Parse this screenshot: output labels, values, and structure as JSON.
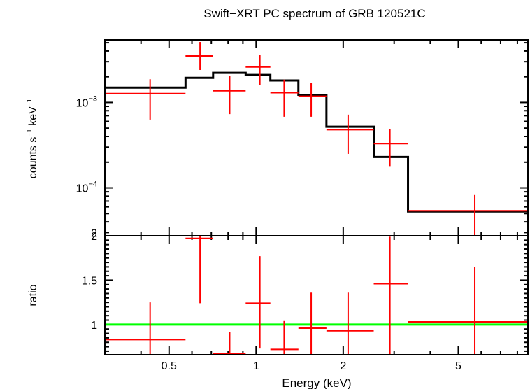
{
  "chart_data": [
    {
      "type": "scatter",
      "title": "Swift−XRT PC spectrum of GRB 120521C",
      "xlabel": "",
      "ylabel_main": "counts s",
      "ylabel_exp1": "−1",
      "ylabel_mid": " keV",
      "ylabel_exp2": "−1",
      "xscale": "log",
      "yscale": "log",
      "xlim": [
        0.3,
        8.7
      ],
      "ylim": [
        2.75e-05,
        0.0054
      ],
      "ytick_labels": [
        {
          "value": 0.001,
          "base": "10",
          "exp": "−3"
        },
        {
          "value": 0.0001,
          "base": "10",
          "exp": "−4"
        },
        {
          "value": 3e-05,
          "base": "2",
          "exp": ""
        }
      ],
      "series": [
        {
          "kind": "data",
          "color": "#ff0000",
          "points": [
            {
              "x": 0.43,
              "xlo": 0.3,
              "xhi": 0.57,
              "y": 0.00127,
              "ylo": 0.00063,
              "yhi": 0.00187
            },
            {
              "x": 0.64,
              "xlo": 0.57,
              "xhi": 0.71,
              "y": 0.0035,
              "ylo": 0.0024,
              "yhi": 0.0051
            },
            {
              "x": 0.81,
              "xlo": 0.71,
              "xhi": 0.92,
              "y": 0.00137,
              "ylo": 0.00073,
              "yhi": 0.00205
            },
            {
              "x": 1.03,
              "xlo": 0.92,
              "xhi": 1.12,
              "y": 0.0026,
              "ylo": 0.0016,
              "yhi": 0.0036
            },
            {
              "x": 1.25,
              "xlo": 1.12,
              "xhi": 1.4,
              "y": 0.0013,
              "ylo": 0.00068,
              "yhi": 0.00185
            },
            {
              "x": 1.55,
              "xlo": 1.4,
              "xhi": 1.75,
              "y": 0.00118,
              "ylo": 0.00068,
              "yhi": 0.0017
            },
            {
              "x": 2.08,
              "xlo": 1.75,
              "xhi": 2.55,
              "y": 0.00048,
              "ylo": 0.00025,
              "yhi": 0.00072
            },
            {
              "x": 2.9,
              "xlo": 2.55,
              "xhi": 3.35,
              "y": 0.00033,
              "ylo": 0.00018,
              "yhi": 0.00049
            },
            {
              "x": 5.7,
              "xlo": 3.35,
              "xhi": 8.7,
              "y": 5.4e-05,
              "ylo": 2.75e-05,
              "yhi": 8.4e-05
            }
          ]
        },
        {
          "kind": "model",
          "color": "#000000",
          "steps": [
            {
              "xlo": 0.3,
              "xhi": 0.57,
              "y": 0.00149
            },
            {
              "xlo": 0.57,
              "xhi": 0.71,
              "y": 0.00194
            },
            {
              "xlo": 0.71,
              "xhi": 0.92,
              "y": 0.00222
            },
            {
              "xlo": 0.92,
              "xhi": 1.12,
              "y": 0.0021
            },
            {
              "xlo": 1.12,
              "xhi": 1.4,
              "y": 0.00181
            },
            {
              "xlo": 1.4,
              "xhi": 1.75,
              "y": 0.00123
            },
            {
              "xlo": 1.75,
              "xhi": 2.55,
              "y": 0.00052
            },
            {
              "xlo": 2.55,
              "xhi": 3.35,
              "y": 0.00023
            },
            {
              "xlo": 3.35,
              "xhi": 8.7,
              "y": 5.3e-05
            }
          ]
        }
      ]
    },
    {
      "type": "scatter",
      "xlabel": "Energy (keV)",
      "ylabel": "ratio",
      "xscale": "log",
      "yscale": "linear",
      "xlim": [
        0.3,
        8.7
      ],
      "ylim": [
        0.66,
        2.0
      ],
      "xtick_labels": [
        {
          "value": 0.5,
          "label": "0.5"
        },
        {
          "value": 1,
          "label": "1"
        },
        {
          "value": 2,
          "label": "2"
        },
        {
          "value": 5,
          "label": "5"
        }
      ],
      "ytick_labels": [
        {
          "value": 2,
          "label": "2"
        },
        {
          "value": 1.5,
          "label": "1.5"
        },
        {
          "value": 1,
          "label": "1"
        }
      ],
      "reference_line": {
        "y": 1,
        "color": "#00ff00"
      },
      "series": [
        {
          "kind": "data",
          "color": "#ff0000",
          "points": [
            {
              "x": 0.43,
              "xlo": 0.3,
              "xhi": 0.57,
              "y": 0.83,
              "ylo": 0.66,
              "yhi": 1.25
            },
            {
              "x": 0.64,
              "xlo": 0.57,
              "xhi": 0.71,
              "y": 1.97,
              "ylo": 1.24,
              "yhi": 2.0
            },
            {
              "x": 0.81,
              "xlo": 0.71,
              "xhi": 0.92,
              "y": 0.67,
              "ylo": 0.66,
              "yhi": 0.92
            },
            {
              "x": 1.03,
              "xlo": 0.92,
              "xhi": 1.12,
              "y": 1.24,
              "ylo": 0.73,
              "yhi": 1.77
            },
            {
              "x": 1.25,
              "xlo": 1.12,
              "xhi": 1.4,
              "y": 0.72,
              "ylo": 0.66,
              "yhi": 1.04
            },
            {
              "x": 1.55,
              "xlo": 1.4,
              "xhi": 1.75,
              "y": 0.96,
              "ylo": 0.66,
              "yhi": 1.36
            },
            {
              "x": 2.08,
              "xlo": 1.75,
              "xhi": 2.55,
              "y": 0.93,
              "ylo": 0.66,
              "yhi": 1.36
            },
            {
              "x": 2.9,
              "xlo": 2.55,
              "xhi": 3.35,
              "y": 1.46,
              "ylo": 0.66,
              "yhi": 1.99
            },
            {
              "x": 5.7,
              "xlo": 3.35,
              "xhi": 8.7,
              "y": 1.03,
              "ylo": 0.66,
              "yhi": 1.65
            }
          ]
        }
      ]
    }
  ]
}
